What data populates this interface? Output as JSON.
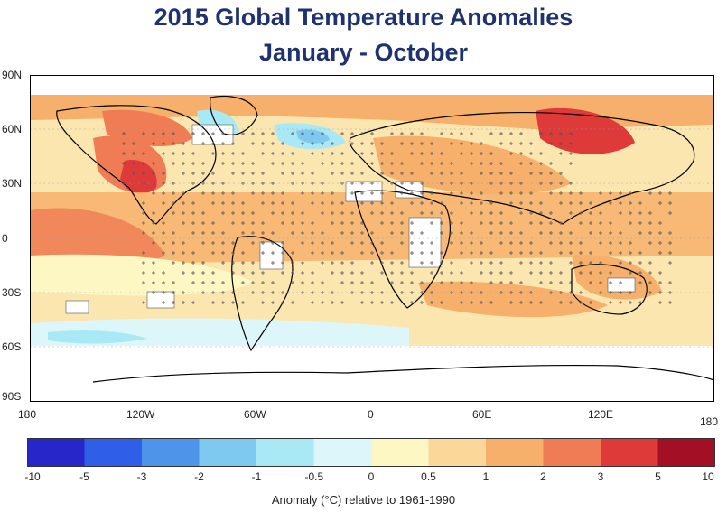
{
  "title_line1": "2015 Global Temperature Anomalies",
  "title_line2": "January - October",
  "latitude_labels": [
    "90N",
    "60N",
    "30N",
    "0",
    "30S",
    "60S",
    "90S"
  ],
  "longitude_labels": [
    "180",
    "120W",
    "60W",
    "0",
    "60E",
    "120E",
    "180"
  ],
  "colorbar": {
    "ticks": [
      "-10",
      "-5",
      "-3",
      "-2",
      "-1",
      "-0.5",
      "0",
      "0.5",
      "1",
      "2",
      "3",
      "5",
      "10"
    ],
    "colors": [
      "#2727c9",
      "#2f5ee8",
      "#4e95ea",
      "#7dc9ef",
      "#a9e9f6",
      "#dcf6f9",
      "#fdf7c3",
      "#fbd79a",
      "#f6b06b",
      "#ef7c55",
      "#de3a3a",
      "#a30f25"
    ]
  },
  "caption": "Anomaly (°C) relative to 1961-1990",
  "colors": {
    "title": "#1f3270",
    "no_data": "#ffffff",
    "land_outline": "#000000",
    "significance_marker": "#555555"
  }
}
